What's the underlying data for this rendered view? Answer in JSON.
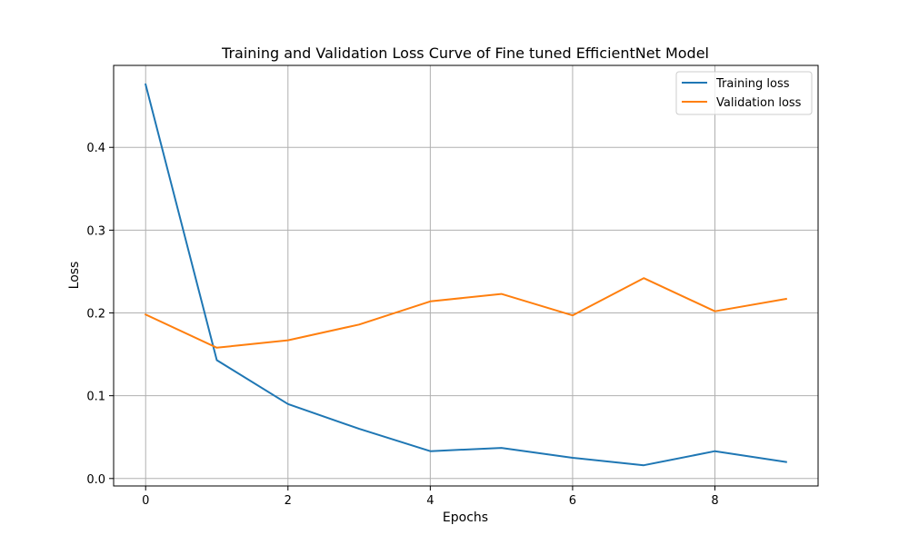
{
  "chart_data": {
    "type": "line",
    "title": "Training and Validation Loss Curve of Fine tuned EfficientNet Model",
    "xlabel": "Epochs",
    "ylabel": "Loss",
    "xlim": [
      -0.45,
      9.45
    ],
    "ylim": [
      -0.009,
      0.499
    ],
    "xticks": [
      0,
      2,
      4,
      6,
      8
    ],
    "yticks": [
      0.0,
      0.1,
      0.2,
      0.3,
      0.4
    ],
    "ytick_labels": [
      "0.0",
      "0.1",
      "0.2",
      "0.3",
      "0.4"
    ],
    "grid": true,
    "legend_position": "upper right",
    "x": [
      0,
      1,
      2,
      3,
      4,
      5,
      6,
      7,
      8,
      9
    ],
    "series": [
      {
        "name": "Training loss",
        "color": "#1f77b4",
        "values": [
          0.476,
          0.143,
          0.09,
          0.06,
          0.033,
          0.037,
          0.025,
          0.016,
          0.033,
          0.02
        ]
      },
      {
        "name": "Validation loss",
        "color": "#ff7f0e",
        "values": [
          0.198,
          0.158,
          0.167,
          0.186,
          0.214,
          0.223,
          0.197,
          0.242,
          0.202,
          0.217
        ]
      }
    ]
  }
}
